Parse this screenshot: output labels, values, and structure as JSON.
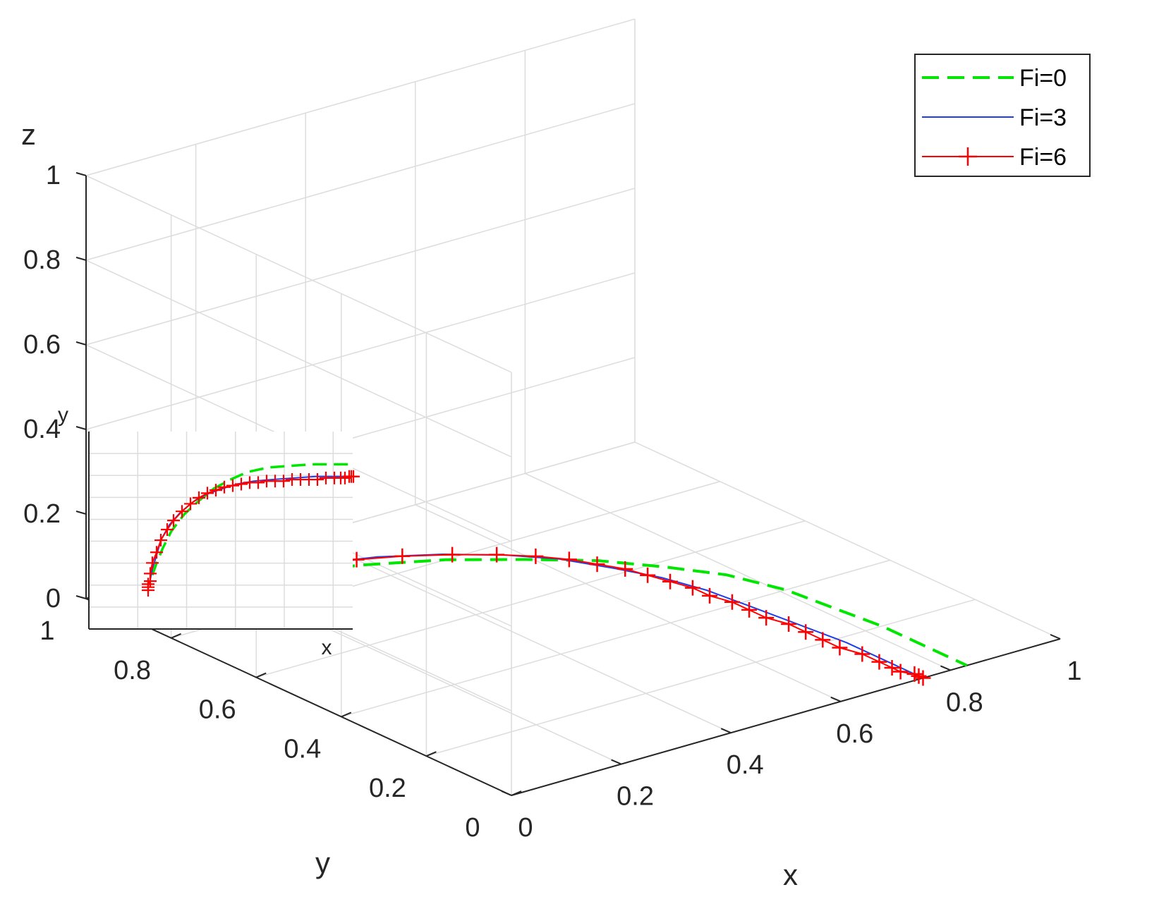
{
  "chart_data": {
    "type": "line",
    "projection": "3d",
    "xlabel": "x",
    "ylabel": "y",
    "zlabel": "z",
    "xlim": [
      0,
      1
    ],
    "ylim": [
      0,
      1
    ],
    "zlim": [
      0,
      1
    ],
    "x_ticks": [
      "0",
      "0.2",
      "0.4",
      "0.6",
      "0.8",
      "1"
    ],
    "y_ticks": [
      "0",
      "0.2",
      "0.4",
      "0.6",
      "0.8",
      "1"
    ],
    "z_ticks": [
      "0",
      "0.2",
      "0.4",
      "0.6",
      "0.8",
      "1"
    ],
    "grid": true,
    "legend_position": "top-right",
    "series": [
      {
        "name": "Fi=0",
        "color": "#00e600",
        "style": "dashed",
        "marker": "none",
        "points": [
          [
            0.1,
            0.95,
            0.0
          ],
          [
            0.18,
            0.93,
            0.0
          ],
          [
            0.28,
            0.9,
            0.0
          ],
          [
            0.39,
            0.86,
            0.0
          ],
          [
            0.5,
            0.8,
            0.0
          ],
          [
            0.59,
            0.73,
            0.0
          ],
          [
            0.67,
            0.66,
            0.0
          ],
          [
            0.73,
            0.58,
            0.0
          ],
          [
            0.78,
            0.5,
            0.0
          ],
          [
            0.81,
            0.4,
            0.0
          ],
          [
            0.82,
            0.3,
            0.0
          ],
          [
            0.83,
            0.2,
            0.0
          ],
          [
            0.83,
            0.1,
            0.0
          ],
          [
            0.83,
            0.0,
            0.0
          ]
        ]
      },
      {
        "name": "Fi=3",
        "color": "#1f3fe6",
        "style": "solid",
        "marker": "none",
        "points": [
          [
            0.07,
            0.96,
            0.0
          ],
          [
            0.14,
            0.95,
            0.0
          ],
          [
            0.23,
            0.93,
            0.0
          ],
          [
            0.33,
            0.91,
            0.0
          ],
          [
            0.43,
            0.87,
            0.0
          ],
          [
            0.51,
            0.82,
            0.0
          ],
          [
            0.58,
            0.76,
            0.0
          ],
          [
            0.63,
            0.7,
            0.0
          ],
          [
            0.67,
            0.62,
            0.0
          ],
          [
            0.7,
            0.55,
            0.0
          ],
          [
            0.72,
            0.47,
            0.0
          ],
          [
            0.73,
            0.38,
            0.0
          ],
          [
            0.74,
            0.28,
            0.0
          ],
          [
            0.75,
            0.18,
            0.0
          ],
          [
            0.75,
            0.08,
            0.0
          ],
          [
            0.75,
            0.0,
            0.0
          ]
        ]
      },
      {
        "name": "Fi=6",
        "color": "#ff0000",
        "style": "solid",
        "marker": "+",
        "points": [
          [
            0.0,
            0.97,
            0.0
          ],
          [
            0.02,
            0.97,
            0.0
          ],
          [
            0.04,
            0.97,
            0.0
          ],
          [
            0.06,
            0.96,
            0.0
          ],
          [
            0.11,
            0.96,
            0.0
          ],
          [
            0.18,
            0.95,
            0.0
          ],
          [
            0.25,
            0.93,
            0.0
          ],
          [
            0.33,
            0.91,
            0.0
          ],
          [
            0.4,
            0.88,
            0.0
          ],
          [
            0.46,
            0.85,
            0.0
          ],
          [
            0.52,
            0.81,
            0.0
          ],
          [
            0.57,
            0.77,
            0.0
          ],
          [
            0.61,
            0.73,
            0.0
          ],
          [
            0.64,
            0.69,
            0.0
          ],
          [
            0.66,
            0.65,
            0.0
          ],
          [
            0.68,
            0.61,
            0.0
          ],
          [
            0.69,
            0.57,
            0.0
          ],
          [
            0.7,
            0.53,
            0.0
          ],
          [
            0.71,
            0.49,
            0.0
          ],
          [
            0.71,
            0.45,
            0.0
          ],
          [
            0.72,
            0.41,
            0.0
          ],
          [
            0.72,
            0.37,
            0.0
          ],
          [
            0.72,
            0.33,
            0.0
          ],
          [
            0.73,
            0.29,
            0.0
          ],
          [
            0.73,
            0.25,
            0.0
          ],
          [
            0.73,
            0.21,
            0.0
          ],
          [
            0.73,
            0.17,
            0.0
          ],
          [
            0.74,
            0.13,
            0.0
          ],
          [
            0.74,
            0.09,
            0.0
          ],
          [
            0.74,
            0.06,
            0.0
          ],
          [
            0.74,
            0.04,
            0.0
          ],
          [
            0.75,
            0.02,
            0.0
          ],
          [
            0.75,
            0.01,
            0.0
          ],
          [
            0.75,
            0.0,
            0.0
          ]
        ]
      }
    ],
    "inset": {
      "xlabel": "x",
      "ylabel": "y",
      "view": "top (x-y plane)"
    }
  }
}
